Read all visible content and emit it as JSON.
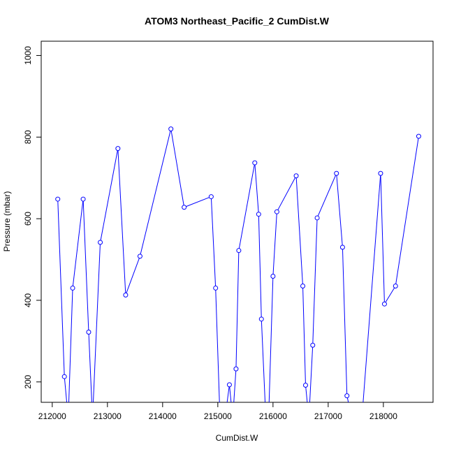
{
  "chart_data": {
    "type": "line",
    "title": "ATOM3 Northeast_Pacific_2 CumDist.W",
    "xlabel": "CumDist.W",
    "ylabel": "Pressure (mbar)",
    "xlim": [
      211800,
      218900
    ],
    "ylim": [
      1035,
      150
    ],
    "y_inverted": true,
    "x_ticks": [
      212000,
      213000,
      214000,
      215000,
      216000,
      217000,
      218000
    ],
    "y_ticks": [
      200,
      400,
      600,
      800,
      1000
    ],
    "grid": false,
    "series": [
      {
        "color": "#0000ff",
        "marker": "open-circle",
        "x": [
          212100,
          212220,
          212290,
          212370,
          212560,
          212660,
          212730,
          212870,
          213190,
          213330,
          213590,
          214150,
          214390,
          214880,
          214960,
          215040,
          215130,
          215210,
          215270,
          215330,
          215380,
          215670,
          215740,
          215790,
          215870,
          215920,
          216000,
          216070,
          216420,
          216540,
          216590,
          216650,
          216720,
          216800,
          217150,
          217260,
          217340,
          217430,
          217610,
          217950,
          218020,
          218220,
          218640
        ],
        "y": [
          648,
          213,
          110,
          430,
          648,
          322,
          110,
          542,
          772,
          413,
          508,
          820,
          628,
          654,
          430,
          110,
          110,
          193,
          110,
          232,
          522,
          737,
          611,
          354,
          110,
          110,
          459,
          617,
          705,
          435,
          192,
          110,
          290,
          602,
          711,
          530,
          166,
          110,
          110,
          711,
          391,
          435,
          802
        ]
      }
    ]
  }
}
